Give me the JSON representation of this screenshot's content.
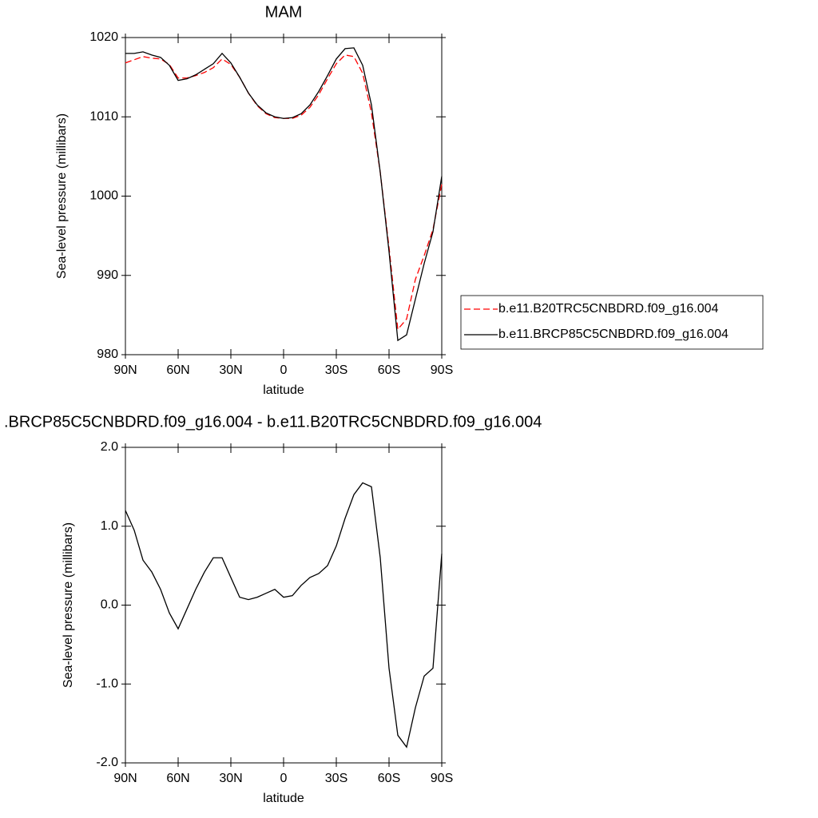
{
  "chart_data": [
    {
      "type": "line",
      "title": "MAM",
      "x_label": "latitude",
      "y_label": "Sea-level pressure (millibars)",
      "x": [
        90,
        85,
        80,
        75,
        70,
        65,
        60,
        55,
        50,
        45,
        40,
        35,
        30,
        25,
        20,
        15,
        10,
        5,
        0,
        -5,
        -10,
        -15,
        -20,
        -25,
        -30,
        -35,
        -40,
        -45,
        -50,
        -55,
        -60,
        -65,
        -70,
        -75,
        -80,
        -85,
        -90
      ],
      "xlim": [
        90,
        -90
      ],
      "xticks": [
        {
          "value": 90,
          "label": "90N"
        },
        {
          "value": 60,
          "label": "60N"
        },
        {
          "value": 30,
          "label": "30N"
        },
        {
          "value": 0,
          "label": "0"
        },
        {
          "value": -30,
          "label": "30S"
        },
        {
          "value": -60,
          "label": "60S"
        },
        {
          "value": -90,
          "label": "90S"
        }
      ],
      "ylim": [
        980,
        1020
      ],
      "yticks": [
        980,
        990,
        1000,
        1010,
        1020
      ],
      "legend": "right",
      "series": [
        {
          "name": "b.e11.B20TRC5CNBDRD.f09_g16.004",
          "color": "#ff0000",
          "dash": true,
          "values": [
            1016.8,
            1017.2,
            1017.6,
            1017.4,
            1017.3,
            1016.6,
            1014.9,
            1014.9,
            1015.2,
            1015.6,
            1016.2,
            1017.3,
            1016.6,
            1015.0,
            1013.0,
            1011.4,
            1010.4,
            1009.9,
            1009.8,
            1009.8,
            1010.2,
            1011.2,
            1012.8,
            1014.8,
            1016.7,
            1017.8,
            1017.6,
            1015.5,
            1010.5,
            1003.0,
            993.5,
            983.2,
            984.5,
            989.5,
            992.5,
            995.8,
            1001.5
          ]
        },
        {
          "name": "b.e11.BRCP85C5CNBDRD.f09_g16.004",
          "color": "#000000",
          "dash": false,
          "values": [
            1018.0,
            1018.0,
            1018.2,
            1017.8,
            1017.5,
            1016.5,
            1014.6,
            1014.8,
            1015.3,
            1016.0,
            1016.7,
            1018.0,
            1016.8,
            1015.0,
            1013.0,
            1011.5,
            1010.5,
            1010.0,
            1009.8,
            1009.9,
            1010.4,
            1011.5,
            1013.2,
            1015.2,
            1017.3,
            1018.6,
            1018.7,
            1016.5,
            1011.5,
            1003.0,
            993.0,
            981.8,
            982.5,
            987.0,
            991.5,
            995.5,
            1002.5
          ]
        }
      ]
    },
    {
      "type": "line",
      "title": ".BRCP85C5CNBDRD.f09_g16.004 - b.e11.B20TRC5CNBDRD.f09_g16.004",
      "x_label": "latitude",
      "y_label": "Sea-level pressure (millibars)",
      "x": [
        90,
        85,
        80,
        75,
        70,
        65,
        60,
        55,
        50,
        45,
        40,
        35,
        30,
        25,
        20,
        15,
        10,
        5,
        0,
        -5,
        -10,
        -15,
        -20,
        -25,
        -30,
        -35,
        -40,
        -45,
        -50,
        -55,
        -60,
        -65,
        -70,
        -75,
        -80,
        -85,
        -90
      ],
      "xlim": [
        90,
        -90
      ],
      "xticks": [
        {
          "value": 90,
          "label": "90N"
        },
        {
          "value": 60,
          "label": "60N"
        },
        {
          "value": 30,
          "label": "30N"
        },
        {
          "value": 0,
          "label": "0"
        },
        {
          "value": -30,
          "label": "30S"
        },
        {
          "value": -60,
          "label": "60S"
        },
        {
          "value": -90,
          "label": "90S"
        }
      ],
      "ylim": [
        -2,
        2
      ],
      "yticks": [
        {
          "value": -2,
          "label": "-2.0"
        },
        {
          "value": -1,
          "label": "-1.0"
        },
        {
          "value": 0,
          "label": "0.0"
        },
        {
          "value": 1,
          "label": "1.0"
        },
        {
          "value": 2,
          "label": "2.0"
        }
      ],
      "series": [
        {
          "color": "#000000",
          "dash": false,
          "values": [
            1.2,
            0.95,
            0.57,
            0.42,
            0.2,
            -0.1,
            -0.3,
            -0.05,
            0.2,
            0.42,
            0.6,
            0.6,
            0.35,
            0.1,
            0.07,
            0.1,
            0.15,
            0.2,
            0.1,
            0.12,
            0.25,
            0.35,
            0.4,
            0.5,
            0.75,
            1.1,
            1.4,
            1.55,
            1.5,
            0.6,
            -0.8,
            -1.65,
            -1.8,
            -1.3,
            -0.9,
            -0.8,
            0.65
          ]
        }
      ]
    }
  ]
}
